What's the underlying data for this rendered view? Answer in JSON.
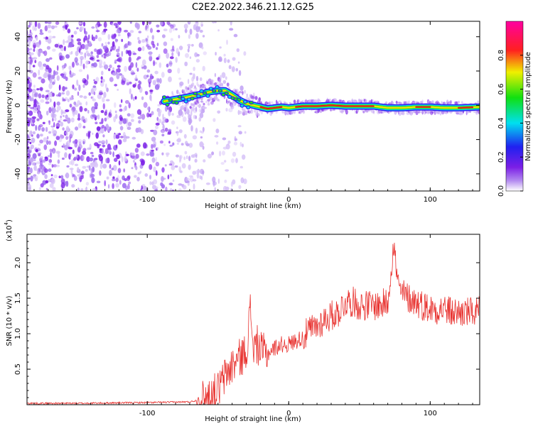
{
  "title": "C2E2.2022.346.21.12.G25",
  "colors": {
    "background": "#ffffff",
    "snr_line": "#e8322f",
    "noise_point": "#7b1fe6",
    "ridge_core": "#e01a1a"
  },
  "chart_data": [
    {
      "type": "heatmap",
      "name": "spectrogram",
      "xlabel": "Height of straight line (km)",
      "ylabel": "Frequency (Hz)",
      "xlim": [
        -185,
        135
      ],
      "ylim": [
        -50,
        49
      ],
      "xticks": [
        -100,
        0,
        100
      ],
      "yticks": [
        -40,
        -20,
        0,
        20,
        40
      ],
      "colorbar": {
        "label": "Normalized spectral amplitude",
        "range": [
          0,
          1
        ],
        "ticks": [
          "0.0",
          "0.2",
          "0.4",
          "0.6",
          "0.8"
        ],
        "colormap": "rainbow (white-purple-blue-cyan-green-yellow-red-magenta)"
      },
      "ridge": {
        "x": [
          -90,
          -80,
          -70,
          -62,
          -55,
          -50,
          -45,
          -40,
          -35,
          -30,
          -25,
          -20,
          -15,
          -10,
          -5,
          0,
          5,
          10,
          20,
          30,
          40,
          50,
          60,
          70,
          80,
          90,
          100,
          110,
          120,
          135
        ],
        "y": [
          2,
          3.5,
          5,
          6.5,
          8,
          8.5,
          8.5,
          6,
          3,
          1,
          0,
          -1,
          -2,
          -1.5,
          -1,
          -1.5,
          -1,
          -0.5,
          -0.5,
          0,
          -0.5,
          -0.5,
          -0.5,
          -1.5,
          -1.5,
          -1,
          -1,
          -1.5,
          -1.5,
          -1
        ]
      },
      "noise_region_x": [
        -185,
        -60
      ]
    },
    {
      "type": "line",
      "name": "snr",
      "xlabel": "Height of straight line (km)",
      "ylabel": "SNR (10 * v/v)",
      "yscale_label": "(x10",
      "yscale_exponent": "4",
      "yscale_close": ")",
      "xlim": [
        -185,
        135
      ],
      "ylim": [
        0,
        2.4
      ],
      "xticks": [
        -100,
        0,
        100
      ],
      "yticks": [
        "0.5",
        "1.0",
        "1.5",
        "2.0"
      ],
      "xtick_labels": [
        "-100",
        "0",
        "100"
      ],
      "series": [
        {
          "color": "#e8322f",
          "x": [
            -185,
            -150,
            -100,
            -70,
            -60,
            -50,
            -45,
            -40,
            -35,
            -30,
            -27,
            -25,
            -22,
            -20,
            -15,
            -10,
            -5,
            0,
            5,
            10,
            15,
            20,
            25,
            30,
            35,
            40,
            45,
            50,
            55,
            60,
            65,
            70,
            74,
            78,
            85,
            90,
            95,
            100,
            105,
            110,
            115,
            120,
            125,
            130,
            135
          ],
          "y": [
            0.02,
            0.02,
            0.03,
            0.04,
            0.08,
            0.2,
            0.4,
            0.55,
            0.65,
            0.75,
            1.35,
            0.8,
            0.85,
            0.75,
            0.72,
            0.8,
            0.85,
            0.85,
            0.9,
            0.95,
            1.05,
            1.1,
            1.2,
            1.25,
            1.3,
            1.45,
            1.45,
            1.4,
            1.4,
            1.4,
            1.4,
            1.45,
            2.25,
            1.6,
            1.5,
            1.45,
            1.4,
            1.35,
            1.35,
            1.35,
            1.3,
            1.3,
            1.3,
            1.3,
            1.3
          ]
        }
      ]
    }
  ]
}
